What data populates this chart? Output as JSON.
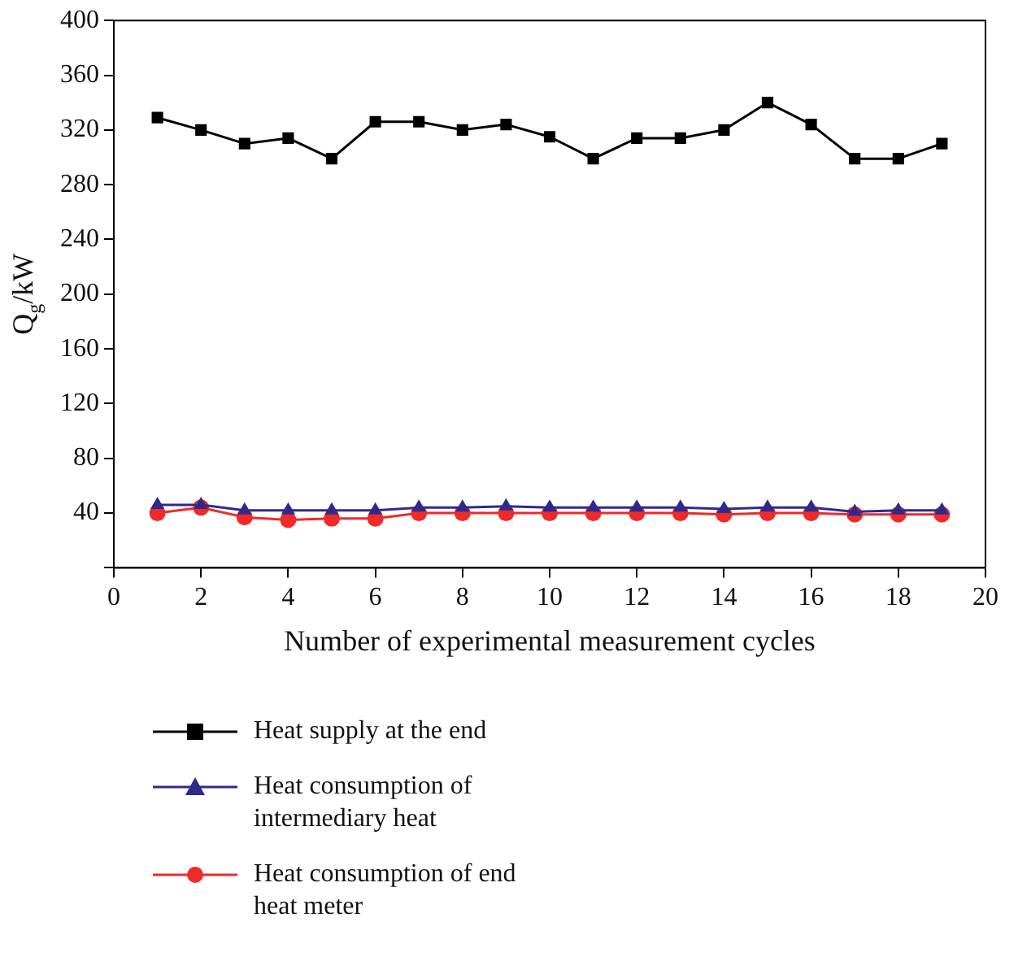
{
  "chart_data": {
    "type": "line",
    "xlabel": "Number of experimental measurement cycles",
    "ylabel": "Q$_{g}$/kW",
    "x": [
      1,
      2,
      3,
      4,
      5,
      6,
      7,
      8,
      9,
      10,
      11,
      12,
      13,
      14,
      15,
      16,
      17,
      18,
      19
    ],
    "xlim": [
      0,
      20
    ],
    "xticks": [
      0,
      2,
      4,
      6,
      8,
      10,
      12,
      14,
      16,
      18,
      20
    ],
    "ylim": [
      0,
      400
    ],
    "yticks": [
      {
        "value": 0,
        "label": null
      },
      40,
      80,
      120,
      160,
      200,
      240,
      280,
      320,
      360,
      400
    ],
    "grid": false,
    "legend": "bottom left",
    "line_style": "solid",
    "series": [
      {
        "name": "Heat supply at the end",
        "color": "#000000",
        "marker": "square",
        "values": [
          329,
          320,
          310,
          314,
          299,
          326,
          326,
          320,
          324,
          315,
          299,
          314,
          314,
          320,
          340,
          324,
          299,
          299,
          310
        ]
      },
      {
        "name": "Heat consumption of intermediary heat",
        "color": "#2e2a8c",
        "marker": "triangle",
        "values": [
          46,
          46,
          42,
          42,
          42,
          42,
          44,
          44,
          45,
          44,
          44,
          44,
          44,
          43,
          44,
          44,
          41,
          42,
          42
        ]
      },
      {
        "name": "Heat consumption of end heat meter",
        "color": "#ee2a2a",
        "marker": "circle",
        "values": [
          40,
          44,
          37,
          35,
          36,
          36,
          40,
          40,
          40,
          40,
          40,
          40,
          40,
          39,
          40,
          40,
          39,
          39,
          39
        ]
      }
    ]
  }
}
